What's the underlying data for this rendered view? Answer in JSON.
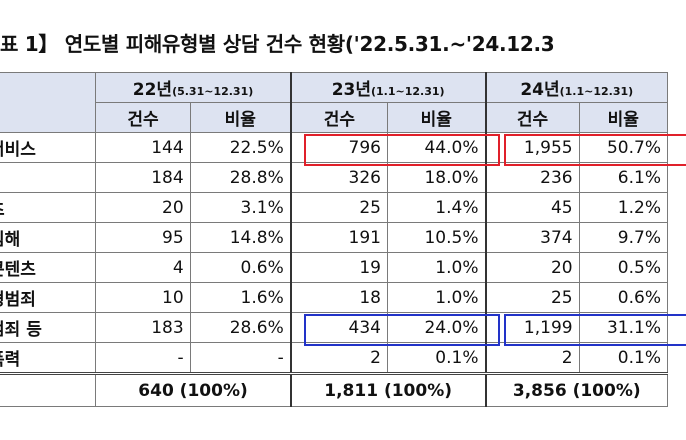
{
  "title": {
    "prefix": "표 1】",
    "main": "연도별 피해유형별 상담 건수 현황('22.5.31.~'24.12.3"
  },
  "years": [
    {
      "year": "22년",
      "range": "(5.31~12.31)"
    },
    {
      "year": "23년",
      "range": "(1.1~12.31)"
    },
    {
      "year": "24년",
      "range": "(1.1~12.31)"
    }
  ],
  "sub_headers": {
    "count": "건수",
    "ratio": "비율"
  },
  "rows": [
    {
      "category": "서비스",
      "c22": "144",
      "r22": "22.5%",
      "c23": "796",
      "r23": "44.0%",
      "c24": "1,955",
      "r24": "50.7%"
    },
    {
      "category": "l",
      "c22": "184",
      "r22": "28.8%",
      "c23": "326",
      "r23": "18.0%",
      "c24": "236",
      "r24": "6.1%"
    },
    {
      "category": "츠",
      "c22": "20",
      "r22": "3.1%",
      "c23": "25",
      "r23": "1.4%",
      "c24": "45",
      "r24": "1.2%"
    },
    {
      "category": "침해",
      "c22": "95",
      "r22": "14.8%",
      "c23": "191",
      "r23": "10.5%",
      "c24": "374",
      "r24": "9.7%"
    },
    {
      "category": "콘텐츠",
      "c22": "4",
      "r22": "0.6%",
      "c23": "19",
      "r23": "1.0%",
      "c24": "20",
      "r24": "0.5%"
    },
    {
      "category": "형범죄",
      "c22": "10",
      "r22": "1.6%",
      "c23": "18",
      "r23": "1.0%",
      "c24": "25",
      "r24": "0.6%"
    },
    {
      "category": "범죄 등",
      "c22": "183",
      "r22": "28.6%",
      "c23": "434",
      "r23": "24.0%",
      "c24": "1,199",
      "r24": "31.1%"
    },
    {
      "category": "폭력",
      "c22": "-",
      "r22": "-",
      "c23": "2",
      "r23": "0.1%",
      "c24": "2",
      "r24": "0.1%"
    }
  ],
  "totals": {
    "t22": "640 (100%)",
    "t23": "1,811 (100%)",
    "t24": "3,856 (100%)"
  },
  "highlight_colors": {
    "red": "#e0202a",
    "blue": "#2233c8"
  }
}
